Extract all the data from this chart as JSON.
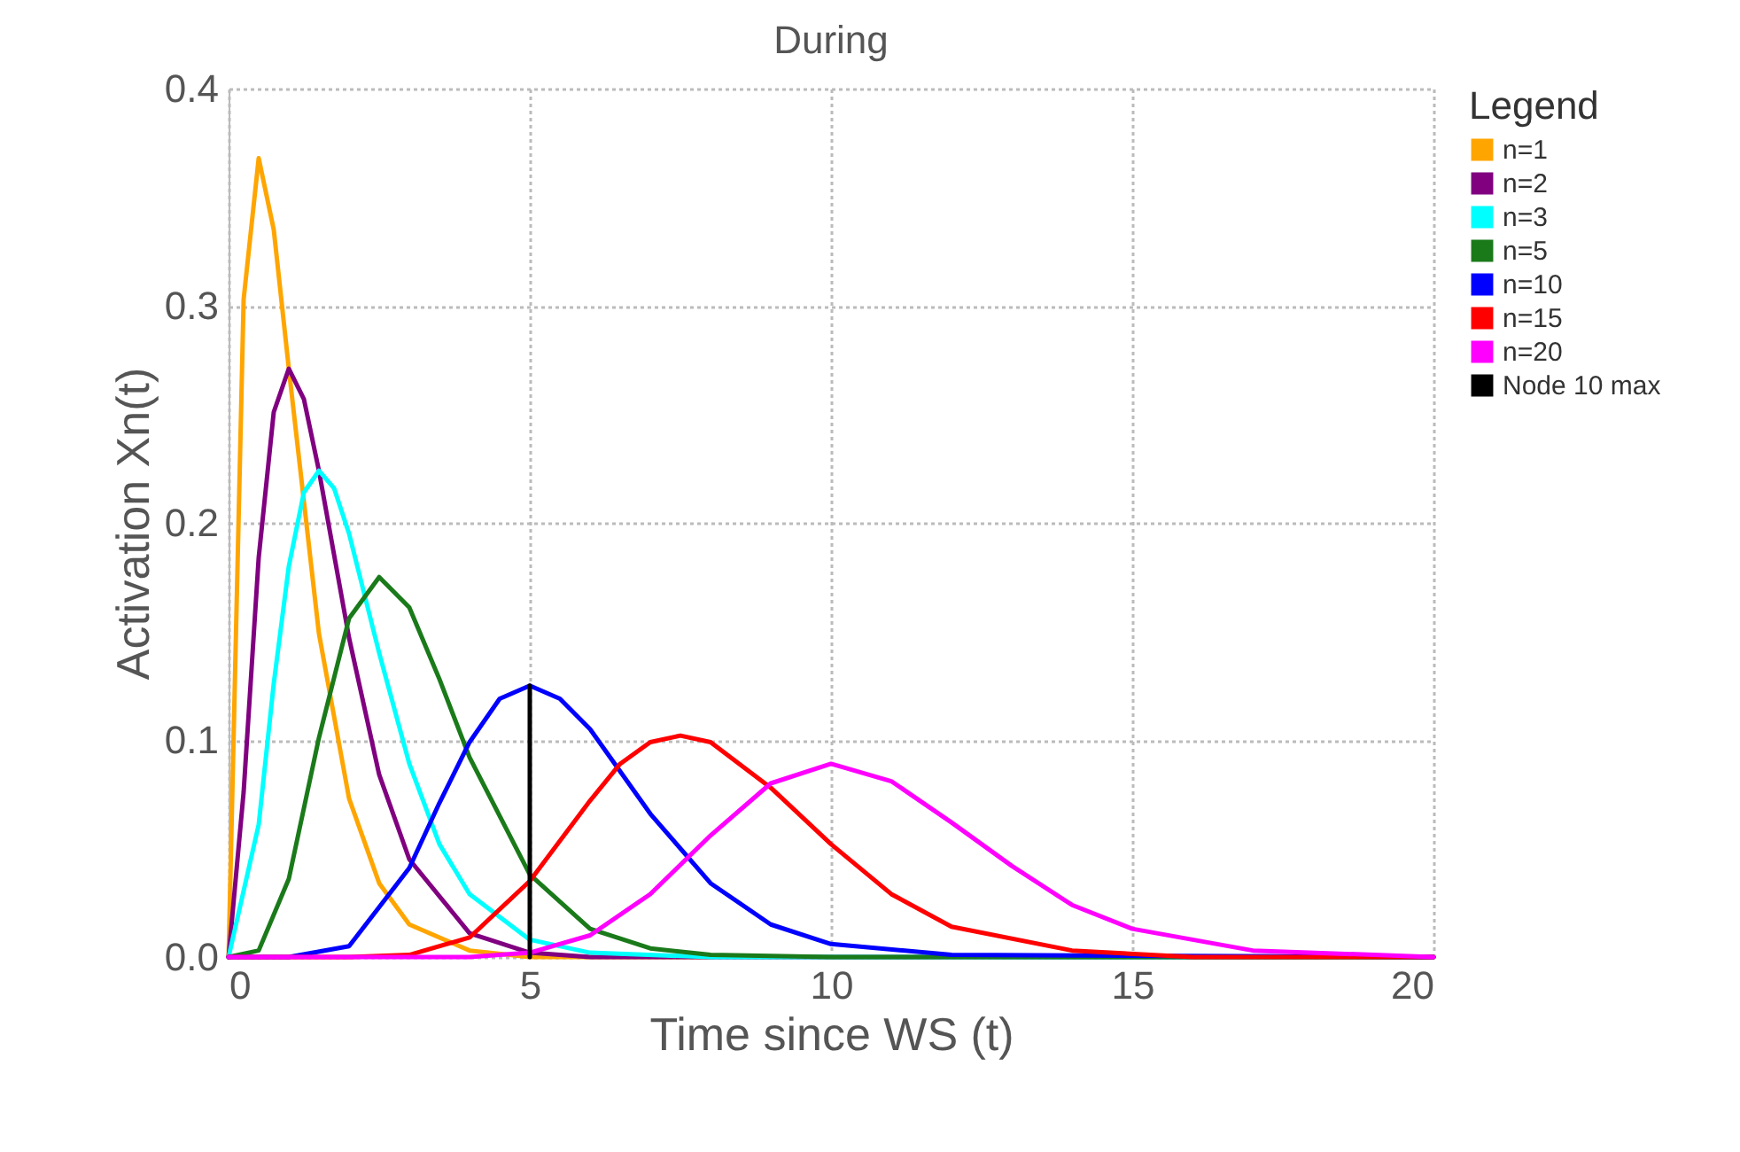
{
  "chart_data": {
    "type": "line",
    "title": "During",
    "xlabel": "Time since WS (t)",
    "ylabel": "Activation Xn(t)",
    "legend_title": "Legend",
    "legend": "right",
    "grid": true,
    "xlim": [
      0,
      20
    ],
    "xticks": [
      0,
      5,
      10,
      15,
      20
    ],
    "ylim": [
      0,
      0.4
    ],
    "yticks": [
      {
        "value": 0,
        "label": "0.0"
      },
      0.1,
      0.2,
      0.3,
      0.4
    ],
    "series": [
      {
        "name": "n=1",
        "color": "#ffa500",
        "x": [
          0,
          0.25,
          0.5,
          0.75,
          1,
          1.5,
          2,
          2.5,
          3,
          4,
          5,
          6,
          8
        ],
        "values": [
          0,
          0.303,
          0.368,
          0.335,
          0.271,
          0.149,
          0.073,
          0.034,
          0.015,
          0.003,
          0,
          0,
          0
        ]
      },
      {
        "name": "n=2",
        "color": "#800080",
        "x": [
          0,
          0.25,
          0.5,
          0.75,
          1,
          1.25,
          1.5,
          2,
          2.5,
          3,
          4,
          5,
          6,
          8,
          20
        ],
        "values": [
          0,
          0.076,
          0.184,
          0.251,
          0.271,
          0.257,
          0.224,
          0.147,
          0.084,
          0.045,
          0.011,
          0.002,
          0,
          0,
          0
        ]
      },
      {
        "name": "n=3",
        "color": "#00ffff",
        "x": [
          0,
          0.5,
          0.75,
          1,
          1.25,
          1.5,
          1.75,
          2,
          2.5,
          3,
          3.5,
          4,
          5,
          6,
          8,
          20
        ],
        "values": [
          0,
          0.061,
          0.126,
          0.18,
          0.214,
          0.224,
          0.216,
          0.195,
          0.14,
          0.089,
          0.052,
          0.029,
          0.008,
          0.002,
          0,
          0
        ]
      },
      {
        "name": "n=5",
        "color": "#1a7a1a",
        "x": [
          0,
          0.5,
          1,
          1.5,
          2,
          2.5,
          3,
          3.5,
          4,
          5,
          6,
          7,
          8,
          10,
          20
        ],
        "values": [
          0,
          0.003,
          0.036,
          0.101,
          0.156,
          0.175,
          0.161,
          0.128,
          0.092,
          0.038,
          0.013,
          0.004,
          0.001,
          0,
          0
        ]
      },
      {
        "name": "n=10",
        "color": "#0000ff",
        "x": [
          0,
          1,
          2,
          3,
          3.5,
          4,
          4.5,
          5,
          5.5,
          6,
          7,
          8,
          9,
          10,
          12,
          20
        ],
        "values": [
          0,
          0,
          0.005,
          0.041,
          0.071,
          0.099,
          0.119,
          0.125,
          0.119,
          0.105,
          0.066,
          0.034,
          0.015,
          0.006,
          0.001,
          0
        ]
      },
      {
        "name": "n=15",
        "color": "#ff0000",
        "x": [
          0,
          2,
          3,
          4,
          5,
          6,
          6.5,
          7,
          7.5,
          8,
          9,
          10,
          11,
          12,
          14,
          16,
          20
        ],
        "values": [
          0,
          0,
          0.001,
          0.009,
          0.035,
          0.072,
          0.089,
          0.099,
          0.102,
          0.099,
          0.078,
          0.052,
          0.029,
          0.014,
          0.003,
          0,
          0
        ]
      },
      {
        "name": "n=20",
        "color": "#ff00ff",
        "x": [
          0,
          3,
          4,
          5,
          6,
          7,
          8,
          9,
          10,
          11,
          12,
          13,
          14,
          15,
          17,
          20
        ],
        "values": [
          0,
          0,
          0,
          0.002,
          0.01,
          0.029,
          0.056,
          0.08,
          0.089,
          0.081,
          0.062,
          0.042,
          0.024,
          0.013,
          0.003,
          0
        ]
      },
      {
        "name": "Node 10 max",
        "color": "#000000",
        "x": [
          5,
          5
        ],
        "values": [
          0,
          0.125
        ]
      }
    ]
  }
}
